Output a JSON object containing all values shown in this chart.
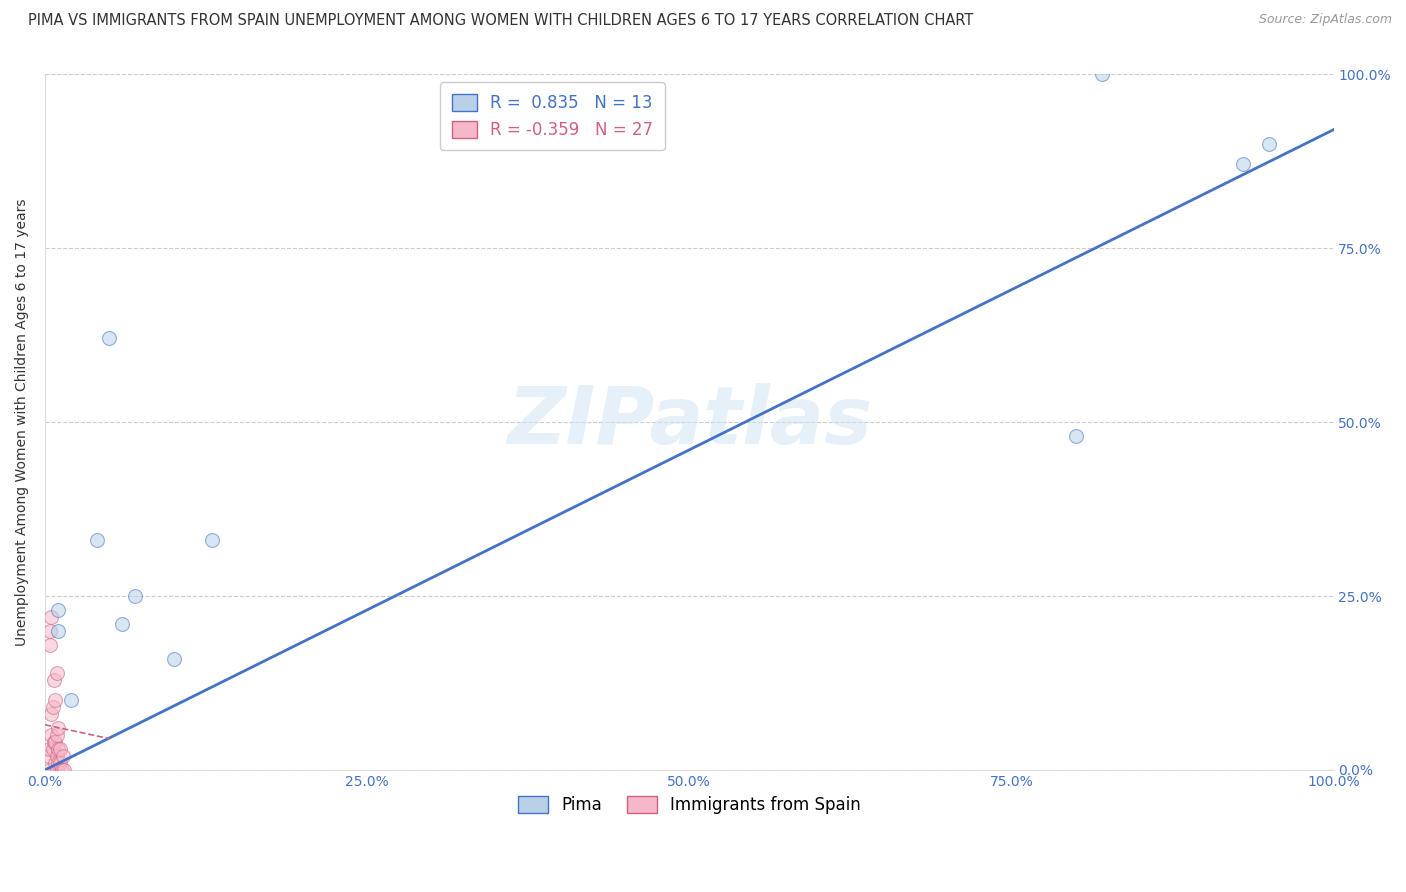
{
  "title": "PIMA VS IMMIGRANTS FROM SPAIN UNEMPLOYMENT AMONG WOMEN WITH CHILDREN AGES 6 TO 17 YEARS CORRELATION CHART",
  "source": "Source: ZipAtlas.com",
  "ylabel": "Unemployment Among Women with Children Ages 6 to 17 years",
  "watermark": "ZIPatlas",
  "pima_R": 0.835,
  "pima_N": 13,
  "spain_R": -0.359,
  "spain_N": 27,
  "pima_color": "#b8d0e8",
  "pima_line_color": "#4472c4",
  "spain_color": "#f4b8c8",
  "spain_line_color": "#d06080",
  "background_color": "#ffffff",
  "grid_color": "#cccccc",
  "pima_x": [
    0.01,
    0.01,
    0.02,
    0.04,
    0.05,
    0.06,
    0.07,
    0.1,
    0.13,
    0.8,
    0.82,
    0.93,
    0.95
  ],
  "pima_y": [
    0.2,
    0.23,
    0.1,
    0.33,
    0.62,
    0.21,
    0.25,
    0.16,
    0.33,
    0.48,
    1.0,
    0.87,
    0.9
  ],
  "spain_x": [
    0.003,
    0.003,
    0.003,
    0.004,
    0.004,
    0.005,
    0.005,
    0.005,
    0.006,
    0.006,
    0.007,
    0.007,
    0.008,
    0.008,
    0.008,
    0.009,
    0.009,
    0.009,
    0.009,
    0.01,
    0.01,
    0.01,
    0.012,
    0.012,
    0.013,
    0.014,
    0.015
  ],
  "spain_y": [
    0.0,
    0.02,
    0.03,
    0.18,
    0.2,
    0.05,
    0.08,
    0.22,
    0.03,
    0.09,
    0.04,
    0.13,
    0.01,
    0.04,
    0.1,
    0.0,
    0.02,
    0.05,
    0.14,
    0.01,
    0.03,
    0.06,
    0.01,
    0.03,
    0.0,
    0.02,
    0.0
  ],
  "xlim": [
    0.0,
    1.0
  ],
  "ylim": [
    0.0,
    1.0
  ],
  "xticks": [
    0.0,
    0.25,
    0.5,
    0.75,
    1.0
  ],
  "yticks": [
    0.0,
    0.25,
    0.5,
    0.75,
    1.0
  ],
  "xticklabels": [
    "0.0%",
    "25.0%",
    "50.0%",
    "75.0%",
    "100.0%"
  ],
  "yticklabels_right": [
    "100.0%",
    "75.0%",
    "50.0%",
    "25.0%",
    "0.0%"
  ],
  "yticklabels_right_vals": [
    1.0,
    0.75,
    0.5,
    0.25,
    0.0
  ],
  "title_fontsize": 10.5,
  "axis_label_fontsize": 10,
  "tick_fontsize": 10,
  "legend_fontsize": 12,
  "marker_size": 100,
  "marker_alpha": 0.55,
  "marker_linewidth": 0.8,
  "pima_trend_x0": 0.0,
  "pima_trend_y0": 0.0,
  "pima_trend_x1": 1.0,
  "pima_trend_y1": 0.92
}
